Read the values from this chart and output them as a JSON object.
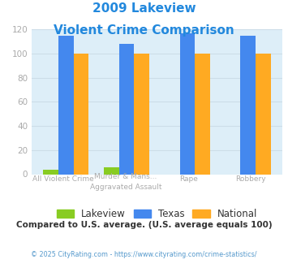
{
  "title_line1": "2009 Lakeview",
  "title_line2": "Violent Crime Comparison",
  "title_color": "#2288dd",
  "cat_labels_top": [
    "",
    "Murder & Mans...",
    "",
    ""
  ],
  "cat_labels_bot": [
    "All Violent Crime",
    "Aggravated Assault",
    "Rape",
    "Robbery"
  ],
  "lakeview": [
    4,
    6,
    0,
    0
  ],
  "texas": [
    115,
    108,
    117,
    115
  ],
  "national": [
    100,
    100,
    100,
    100
  ],
  "lakeview_color": "#88cc22",
  "texas_color": "#4488ee",
  "national_color": "#ffaa22",
  "ylim": [
    0,
    120
  ],
  "yticks": [
    0,
    20,
    40,
    60,
    80,
    100,
    120
  ],
  "ytick_color": "#aaaaaa",
  "grid_color": "#ccdde8",
  "bg_color": "#ddeef8",
  "legend_label_color": "#333333",
  "xtick_color": "#aaaaaa",
  "footnote": "Compared to U.S. average. (U.S. average equals 100)",
  "footnote_color": "#333333",
  "copyright": "© 2025 CityRating.com - https://www.cityrating.com/crime-statistics/",
  "copyright_color": "#5599cc"
}
